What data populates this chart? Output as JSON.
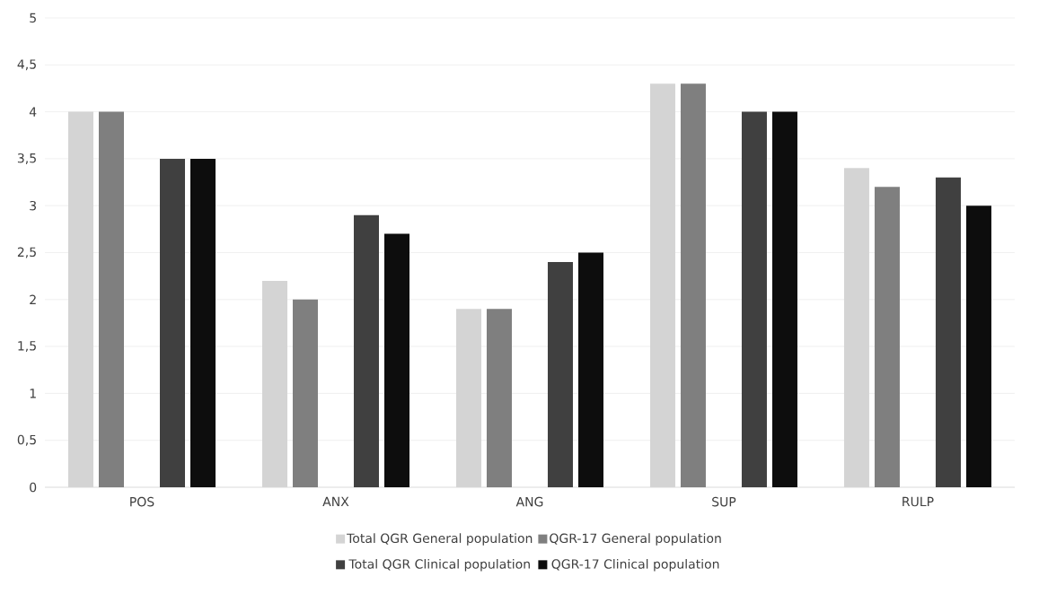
{
  "chart_data": {
    "type": "bar",
    "categories": [
      "POS",
      "ANX",
      "ANG",
      "SUP",
      "RULP"
    ],
    "series": [
      {
        "name": "Total QGR General population",
        "color": "#d4d4d4",
        "values": [
          4,
          2.2,
          1.9,
          4.3,
          3.4
        ]
      },
      {
        "name": "QGR-17 General population",
        "color": "#7f7f7f",
        "values": [
          4,
          2,
          1.9,
          4.3,
          3.2
        ]
      },
      {
        "name": "Total QGR Clinical population",
        "color": "#404040",
        "values": [
          3.5,
          2.9,
          2.4,
          4,
          3.3
        ]
      },
      {
        "name": "QGR-17 Clinical population",
        "color": "#0d0d0d",
        "values": [
          3.5,
          2.7,
          2.5,
          4,
          3
        ]
      }
    ],
    "ylim": [
      0,
      5
    ],
    "yticks": [
      0,
      {
        "value": 0.5,
        "label": "0,5"
      },
      1,
      {
        "value": 1.5,
        "label": "1,5"
      },
      2,
      {
        "value": 2.5,
        "label": "2,5"
      },
      3,
      {
        "value": 3.5,
        "label": "3,5"
      },
      4,
      {
        "value": 4.5,
        "label": "4,5"
      },
      5
    ],
    "grid": "y",
    "legend": "bottom"
  }
}
